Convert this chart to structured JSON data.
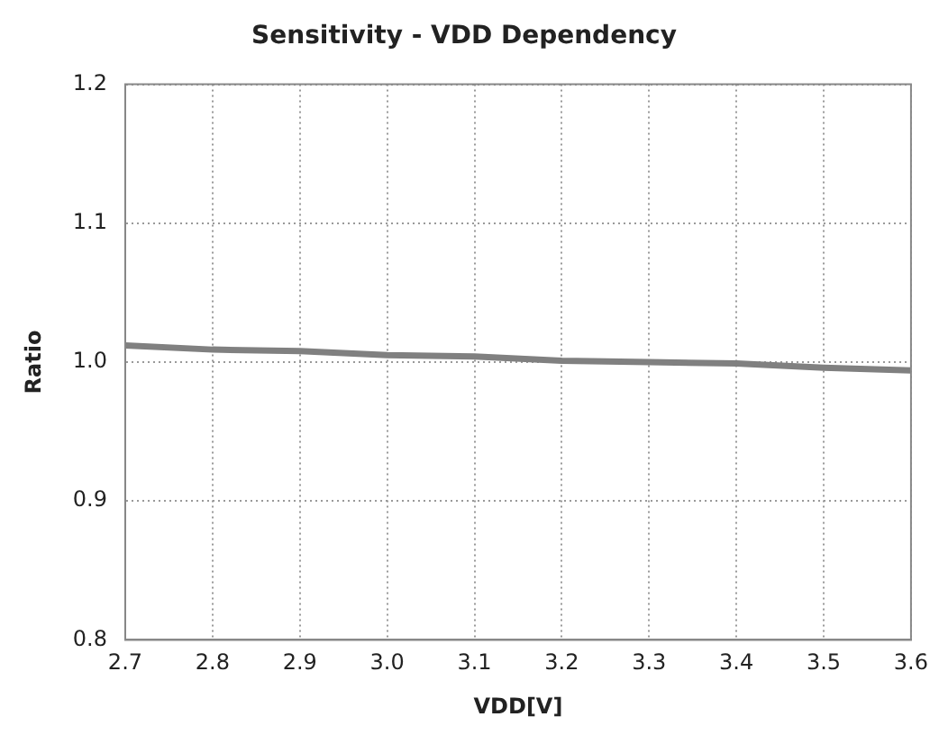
{
  "chart_data": {
    "type": "line",
    "title": "Sensitivity - VDD Dependency",
    "xlabel": "VDD[V]",
    "ylabel": "Ratio",
    "x": [
      2.7,
      2.8,
      2.9,
      3.0,
      3.1,
      3.2,
      3.3,
      3.4,
      3.5,
      3.6
    ],
    "series": [
      {
        "color": "#808080",
        "values": [
          1.012,
          1.009,
          1.008,
          1.005,
          1.004,
          1.001,
          1.0,
          0.999,
          0.996,
          0.994
        ]
      }
    ],
    "xlim": [
      2.7,
      3.6
    ],
    "ylim": [
      0.8,
      1.2
    ],
    "xticks": [
      2.7,
      2.8,
      2.9,
      {
        "value": 3.0,
        "label": "3.0"
      },
      3.1,
      3.2,
      3.3,
      3.4,
      3.5,
      3.6
    ],
    "yticks": [
      0.8,
      0.9,
      {
        "value": 1.0,
        "label": "1.0"
      },
      1.1,
      1.2
    ],
    "grid": true,
    "marker": "none",
    "line_style": "solid"
  }
}
